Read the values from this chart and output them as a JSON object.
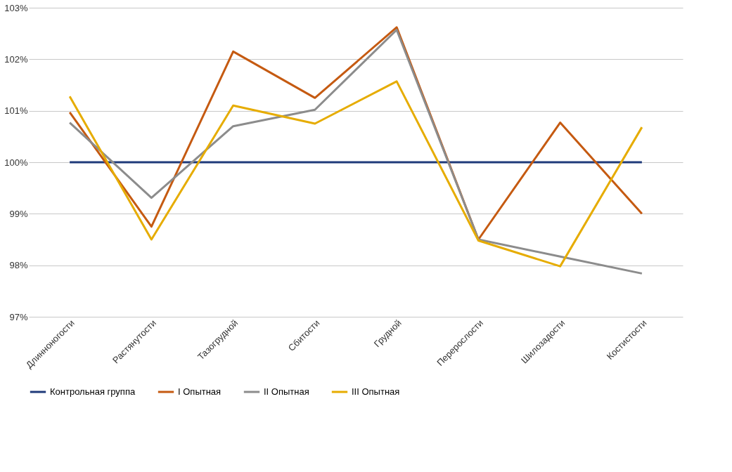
{
  "chart_data": {
    "type": "line",
    "categories": [
      "Длинноногости",
      "Растянутости",
      "Тазогрудной",
      "Сбитости",
      "Грудной",
      "Перерослости",
      "Шилозадости",
      "Костистости"
    ],
    "series": [
      {
        "name": "Контрольная группа",
        "color": "#1f3a7a",
        "values": [
          100,
          100,
          100,
          100,
          100,
          100,
          100,
          100
        ]
      },
      {
        "name": "I Опытная",
        "color": "#c55a11",
        "values": [
          100.97,
          98.75,
          102.15,
          101.25,
          102.62,
          98.5,
          100.77,
          99.0
        ]
      },
      {
        "name": "II Опытная",
        "color": "#8c8c8c",
        "values": [
          100.77,
          99.31,
          100.7,
          101.02,
          102.57,
          98.5,
          98.17,
          97.84
        ]
      },
      {
        "name": "III Опытная",
        "color": "#e6ac00",
        "values": [
          101.28,
          98.5,
          101.1,
          100.75,
          101.57,
          98.48,
          97.98,
          100.68
        ]
      }
    ],
    "ylim": [
      97,
      103
    ],
    "yticks": [
      {
        "value": 97,
        "label": "97%"
      },
      {
        "value": 98,
        "label": "98%"
      },
      {
        "value": 99,
        "label": "99%"
      },
      {
        "value": 100,
        "label": "100%"
      },
      {
        "value": 101,
        "label": "101%"
      },
      {
        "value": 102,
        "label": "102%"
      },
      {
        "value": 103,
        "label": "103%"
      }
    ],
    "grid": "y",
    "legend": "bottom",
    "marker": "none",
    "line_style": "solid"
  }
}
